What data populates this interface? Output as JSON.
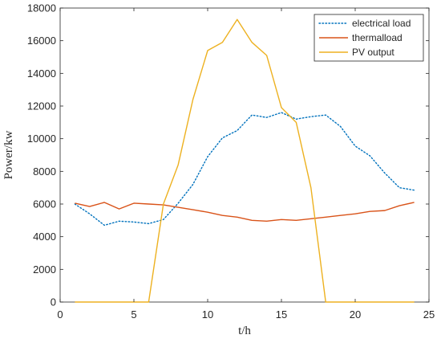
{
  "chart_data": {
    "type": "line",
    "title": "",
    "xlabel": "t/h",
    "ylabel": "Power/kw",
    "xlim": [
      0,
      25
    ],
    "ylim": [
      0,
      18000
    ],
    "x_ticks": [
      0,
      5,
      10,
      15,
      20,
      25
    ],
    "y_ticks": [
      0,
      2000,
      4000,
      6000,
      8000,
      10000,
      12000,
      14000,
      16000,
      18000
    ],
    "grid": false,
    "legend_position": "top-right",
    "x": [
      1,
      2,
      3,
      4,
      5,
      6,
      7,
      8,
      9,
      10,
      11,
      12,
      13,
      14,
      15,
      16,
      17,
      18,
      19,
      20,
      21,
      22,
      23,
      24
    ],
    "series": [
      {
        "name": "electrical load",
        "color": "#0072BD",
        "style": "dotted",
        "values": [
          6000,
          5400,
          4700,
          4950,
          4900,
          4800,
          5050,
          6050,
          7200,
          8900,
          10050,
          10500,
          11450,
          11300,
          11600,
          11200,
          11350,
          11450,
          10750,
          9550,
          8950,
          7900,
          7000,
          6850
        ]
      },
      {
        "name": "thermalload",
        "color": "#D95319",
        "style": "solid",
        "values": [
          6050,
          5850,
          6100,
          5700,
          6050,
          6000,
          5950,
          5800,
          5650,
          5500,
          5300,
          5200,
          5000,
          4950,
          5050,
          5000,
          5100,
          5200,
          5300,
          5400,
          5550,
          5600,
          5900,
          6100
        ]
      },
      {
        "name": "PV output",
        "color": "#EDB120",
        "style": "solid",
        "values": [
          0,
          0,
          0,
          0,
          0,
          0,
          6000,
          8400,
          12400,
          15400,
          15900,
          17300,
          15900,
          15100,
          11900,
          11000,
          7000,
          0,
          0,
          0,
          0,
          0,
          0,
          0
        ]
      }
    ]
  }
}
